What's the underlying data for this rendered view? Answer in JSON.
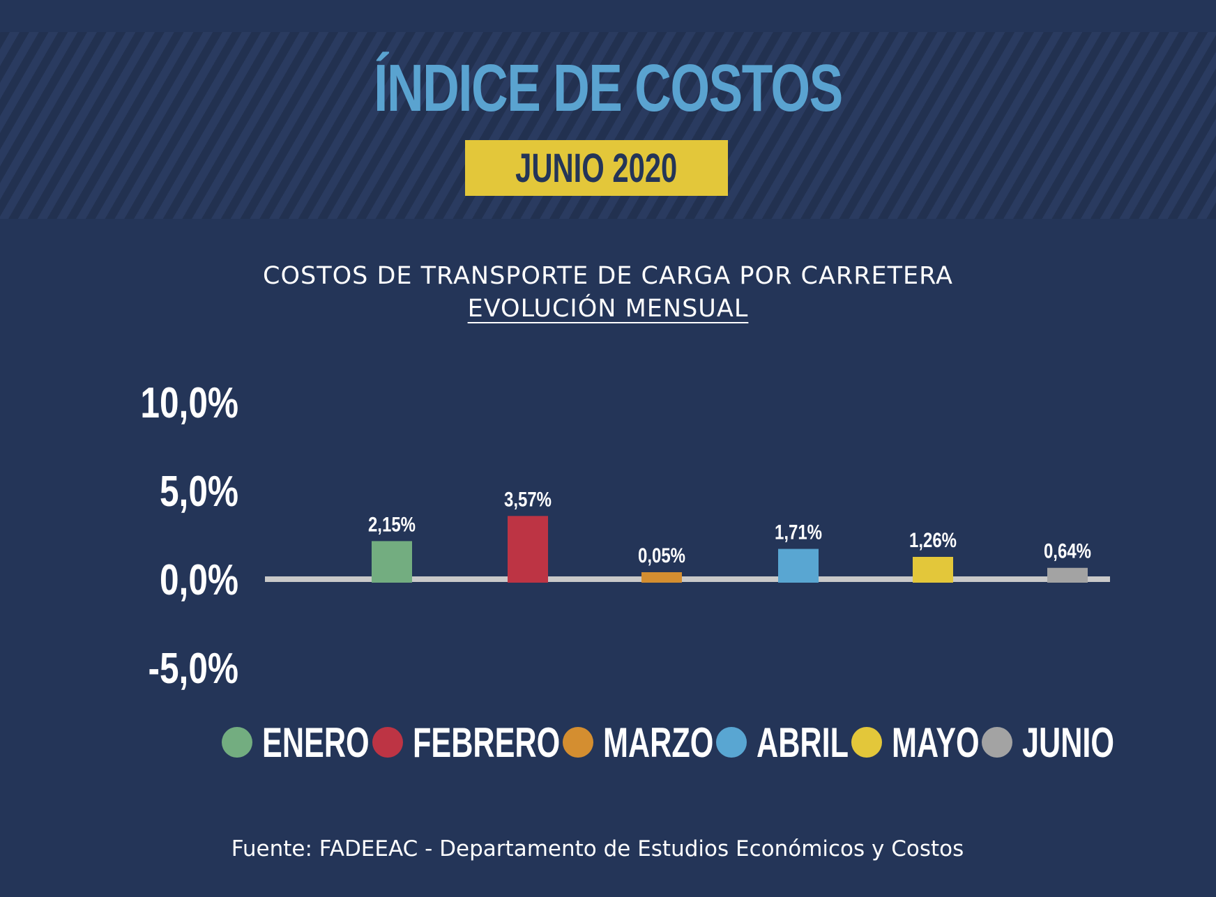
{
  "header": {
    "title": "ÍNDICE DE COSTOS",
    "date_label": "JUNIO 2020"
  },
  "subtitle": {
    "line1": "COSTOS DE TRANSPORTE DE CARGA POR CARRETERA",
    "line2": "EVOLUCIÓN MENSUAL"
  },
  "chart_data": {
    "type": "bar",
    "title": "COSTOS DE TRANSPORTE DE CARGA POR CARRETERA",
    "subtitle": "EVOLUCIÓN MENSUAL",
    "categories": [
      "ENERO",
      "FEBRERO",
      "MARZO",
      "ABRIL",
      "MAYO",
      "JUNIO"
    ],
    "values": [
      2.15,
      3.57,
      0.05,
      1.71,
      1.26,
      0.64
    ],
    "value_labels": [
      "2,15%",
      "3,57%",
      "0,05%",
      "1,71%",
      "1,26%",
      "0,64%"
    ],
    "colors": [
      "#73ad80",
      "#bd3444",
      "#d48e30",
      "#59a6d2",
      "#e3c73a",
      "#a3a3a3"
    ],
    "ylim": [
      -5,
      10
    ],
    "yticks": [
      10,
      5,
      0,
      -5
    ],
    "ytick_labels": [
      "10,0%",
      "5,0%",
      "0,0%",
      "-5,0%"
    ],
    "zero_line_color": "#c9c9c9",
    "legend_position": "bottom",
    "grid": false
  },
  "source": "Fuente: FADEEAC - Departamento de Estudios Económicos y Costos"
}
